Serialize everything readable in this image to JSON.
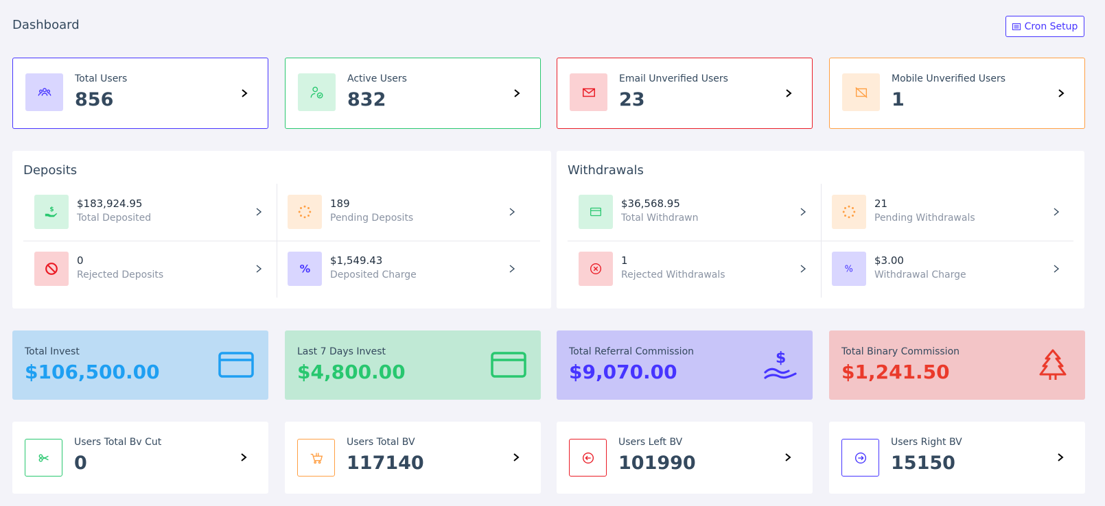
{
  "header": {
    "title": "Dashboard",
    "cron_label": "Cron Setup"
  },
  "stats": [
    {
      "label": "Total Users",
      "value": "856",
      "color": "#4634ff",
      "bg": "#d9d6ff",
      "icon": "users-group-icon"
    },
    {
      "label": "Active Users",
      "value": "832",
      "color": "#28c76f",
      "bg": "#d4f4e2",
      "icon": "user-check-icon"
    },
    {
      "label": "Email Unverified Users",
      "value": "23",
      "color": "#ea1b25",
      "bg": "#fbd1d3",
      "icon": "envelope-icon"
    },
    {
      "label": "Mobile Unverified Users",
      "value": "1",
      "color": "#ff9f43",
      "bg": "#ffecd9",
      "icon": "mobile-slash-icon"
    }
  ],
  "deposits": {
    "title": "Deposits",
    "items": [
      {
        "value": "$183,924.95",
        "label": "Total Deposited",
        "icon": "hand-dollar-icon",
        "color": "#28c76f",
        "bg": "#d4f4e2"
      },
      {
        "value": "189",
        "label": "Pending Deposits",
        "icon": "spinner-icon",
        "color": "#ff9f43",
        "bg": "#ffecd9"
      },
      {
        "value": "0",
        "label": "Rejected Deposits",
        "icon": "ban-icon",
        "color": "#ea1b25",
        "bg": "#fbd1d3"
      },
      {
        "value": "$1,549.43",
        "label": "Deposited Charge",
        "icon": "percent-icon",
        "color": "#4634ff",
        "bg": "#d9d6ff"
      }
    ]
  },
  "withdrawals": {
    "title": "Withdrawals",
    "items": [
      {
        "value": "$36,568.95",
        "label": "Total Withdrawn",
        "icon": "card-icon",
        "color": "#28c76f",
        "bg": "#d4f4e2"
      },
      {
        "value": "21",
        "label": "Pending Withdrawals",
        "icon": "spinner-icon",
        "color": "#ff9f43",
        "bg": "#ffecd9"
      },
      {
        "value": "1",
        "label": "Rejected Withdrawals",
        "icon": "times-circle-icon",
        "color": "#ea1b25",
        "bg": "#fbd1d3"
      },
      {
        "value": "$3.00",
        "label": "Withdrawal Charge",
        "icon": "percent-icon",
        "color": "#4634ff",
        "bg": "#d9d6ff"
      }
    ]
  },
  "invest": [
    {
      "label": "Total Invest",
      "value": "$106,500.00",
      "color": "#1e9ff2",
      "bg": "#bcdcf5",
      "icon": "credit-card-icon"
    },
    {
      "label": "Last 7 Days Invest",
      "value": "$4,800.00",
      "color": "#28c76f",
      "bg": "#c0e9d5",
      "icon": "credit-card-icon"
    },
    {
      "label": "Total Referral Commission",
      "value": "$9,070.00",
      "color": "#4634ff",
      "bg": "#c8c5f9",
      "icon": "hand-holding-dollar-icon"
    },
    {
      "label": "Total Binary Commission",
      "value": "$1,241.50",
      "color": "#ea3a2b",
      "bg": "#f3c5c7",
      "icon": "tree-icon"
    }
  ],
  "bv": [
    {
      "label": "Users Total Bv Cut",
      "value": "0",
      "color": "#28c76f",
      "icon": "scissors-icon"
    },
    {
      "label": "Users Total BV",
      "value": "117140",
      "color": "#ff9f43",
      "icon": "cart-icon"
    },
    {
      "label": "Users Left BV",
      "value": "101990",
      "color": "#ea1b25",
      "icon": "arrow-left-circle-icon"
    },
    {
      "label": "Users Right BV",
      "value": "15150",
      "color": "#4634ff",
      "icon": "arrow-right-circle-icon"
    }
  ]
}
